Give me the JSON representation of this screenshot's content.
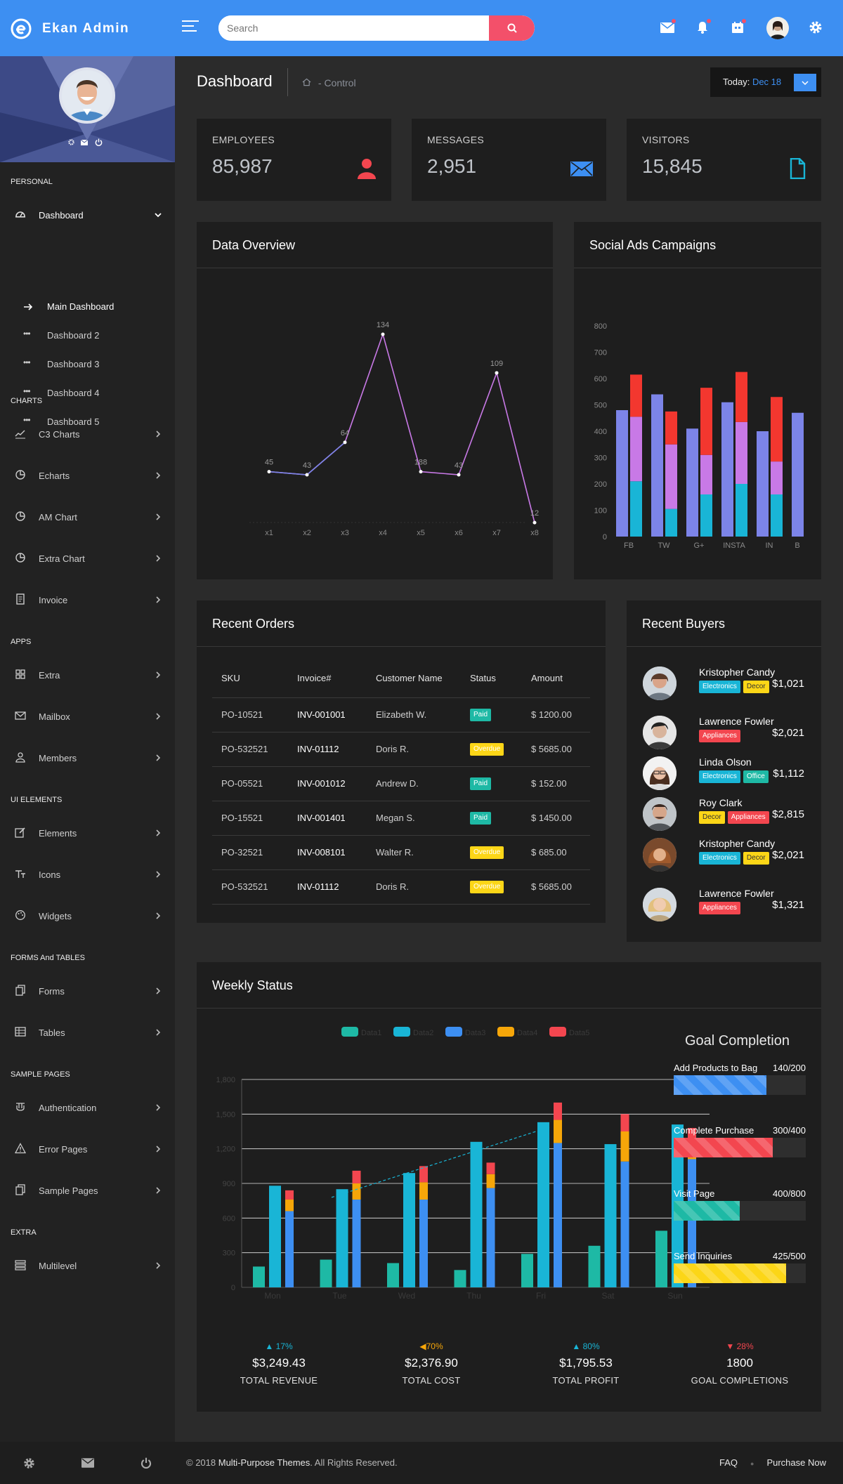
{
  "brand": {
    "name": "Ekan Admin"
  },
  "search": {
    "placeholder": "Search"
  },
  "sidebar": {
    "sections": {
      "personal": "PERSONAL",
      "charts": "CHARTS",
      "apps": "APPS",
      "ui": "UI ELEMENTS",
      "forms": "FORMS And TABLES",
      "sample": "SAMPLE PAGES",
      "extra": "EXTRA"
    },
    "dashboard": "Dashboard",
    "sub": [
      "Main Dashboard",
      "Dashboard 2",
      "Dashboard 3",
      "Dashboard 4",
      "Dashboard 5"
    ],
    "charts": [
      "C3 Charts",
      "Echarts",
      "AM Chart",
      "Extra Chart",
      "Invoice"
    ],
    "apps": [
      "Extra",
      "Mailbox",
      "Members"
    ],
    "ui": [
      "Elements",
      "Icons",
      "Widgets"
    ],
    "forms": [
      "Forms",
      "Tables"
    ],
    "sample": [
      "Authentication",
      "Error Pages",
      "Sample Pages"
    ],
    "extra": [
      "Multilevel"
    ]
  },
  "header": {
    "title": "Dashboard",
    "crumb": "- Control",
    "today_label": "Today:",
    "today_value": "Dec 18"
  },
  "stats": [
    {
      "label": "EMPLOYEES",
      "value": "85,987",
      "color": "#f3464f"
    },
    {
      "label": "MESSAGES",
      "value": "2,951",
      "color": "#3d8ff2"
    },
    {
      "label": "VISITORS",
      "value": "15,845",
      "color": "#19b5d6"
    }
  ],
  "overview": {
    "title": "Data Overview"
  },
  "social": {
    "title": "Social Ads Campaigns"
  },
  "orders": {
    "title": "Recent Orders",
    "columns": [
      "SKU",
      "Invoice#",
      "Customer Name",
      "Status",
      "Amount"
    ],
    "rows": [
      {
        "sku": "PO-10521",
        "inv": "INV-001001",
        "name": "Elizabeth W.",
        "status": "Paid",
        "amount": "$ 1200.00"
      },
      {
        "sku": "PO-532521",
        "inv": "INV-01112",
        "name": "Doris R.",
        "status": "Overdue",
        "amount": "$ 5685.00"
      },
      {
        "sku": "PO-05521",
        "inv": "INV-001012",
        "name": "Andrew D.",
        "status": "Paid",
        "amount": "$ 152.00"
      },
      {
        "sku": "PO-15521",
        "inv": "INV-001401",
        "name": "Megan S.",
        "status": "Paid",
        "amount": "$ 1450.00"
      },
      {
        "sku": "PO-32521",
        "inv": "INV-008101",
        "name": "Walter R.",
        "status": "Overdue",
        "amount": "$ 685.00"
      },
      {
        "sku": "PO-532521",
        "inv": "INV-01112",
        "name": "Doris R.",
        "status": "Overdue",
        "amount": "$ 5685.00"
      }
    ]
  },
  "buyers": {
    "title": "Recent Buyers",
    "list": [
      {
        "name": "Kristopher Candy",
        "amount": "$1,021",
        "tags": [
          "Electronics",
          "Decor"
        ]
      },
      {
        "name": "Lawrence Fowler",
        "amount": "$2,021",
        "tags": [
          "Appliances"
        ]
      },
      {
        "name": "Linda Olson",
        "amount": "$1,112",
        "tags": [
          "Electronics",
          "Office"
        ]
      },
      {
        "name": "Roy Clark",
        "amount": "$2,815",
        "tags": [
          "Decor",
          "Appliances"
        ]
      },
      {
        "name": "Kristopher Candy",
        "amount": "$2,021",
        "tags": [
          "Electronics",
          "Decor"
        ]
      },
      {
        "name": "Lawrence Fowler",
        "amount": "$1,321",
        "tags": [
          "Appliances"
        ]
      }
    ]
  },
  "weekly": {
    "title": "Weekly Status",
    "goal_title": "Goal Completion"
  },
  "goals": [
    {
      "name": "Add Products to Bag",
      "value": "140/200",
      "pct": 0.7,
      "color": "#3d8ff2"
    },
    {
      "name": "Complete Purchase",
      "value": "300/400",
      "pct": 0.75,
      "color": "#f3464f"
    },
    {
      "name": "Visit Page",
      "value": "400/800",
      "pct": 0.5,
      "color": "#1eb9a5"
    },
    {
      "name": "Send Inquiries",
      "value": "425/500",
      "pct": 0.85,
      "color": "#fcd617"
    }
  ],
  "kpis": [
    {
      "pct": "17%",
      "dir": "up",
      "value": "$3,249.43",
      "label": "TOTAL REVENUE",
      "color": "#19b5d6"
    },
    {
      "pct": "70%",
      "dir": "left",
      "value": "$2,376.90",
      "label": "TOTAL COST",
      "color": "#f6a609"
    },
    {
      "pct": "80%",
      "dir": "up",
      "value": "$1,795.53",
      "label": "TOTAL PROFIT",
      "color": "#19b5d6"
    },
    {
      "pct": "28%",
      "dir": "down",
      "value": "1800",
      "label": "GOAL COMPLETIONS",
      "color": "#f3464f"
    }
  ],
  "footer": {
    "copy_prefix": "© 2018",
    "copy_brand": "Multi-Purpose Themes",
    "copy_suffix": ". All Rights Reserved.",
    "faq": "FAQ",
    "purchase": "Purchase Now"
  },
  "chart_data": [
    {
      "type": "line",
      "categories": [
        "x1",
        "x2",
        "x3",
        "x4",
        "x5",
        "x6",
        "x7",
        "x8"
      ],
      "values": [
        45,
        43,
        64,
        134,
        188,
        43,
        109,
        12
      ],
      "color": "#c879e6"
    },
    {
      "type": "bar",
      "categories": [
        "FB",
        "TW",
        "G+",
        "INSTA",
        "IN",
        "B"
      ],
      "ylim": [
        0,
        800
      ],
      "yticks": [
        0,
        100,
        200,
        300,
        400,
        500,
        600,
        700,
        800
      ],
      "groups": [
        {
          "solid": 480,
          "stack": [
            210,
            245,
            160
          ]
        },
        {
          "solid": 540,
          "stack": [
            105,
            245,
            125
          ]
        },
        {
          "solid": 410,
          "stack": [
            160,
            150,
            255
          ]
        },
        {
          "solid": 510,
          "stack": [
            200,
            235,
            190
          ]
        },
        {
          "solid": 400,
          "stack": [
            160,
            125,
            245
          ]
        },
        {
          "solid": 470,
          "stack": []
        }
      ],
      "colors": [
        "#7c84e8",
        "#19b5d6",
        "#c879e6",
        "#f3372f"
      ]
    },
    {
      "type": "bar",
      "categories": [
        "Mon",
        "Tue",
        "Wed",
        "Thu",
        "Fri",
        "Sat",
        "Sun"
      ],
      "ylim": [
        0,
        1800
      ],
      "yticks": [
        0,
        300,
        600,
        900,
        1200,
        1500,
        1800
      ],
      "series": [
        {
          "name": "Data1",
          "values": [
            180,
            240,
            210,
            150,
            290,
            360,
            490
          ]
        },
        {
          "name": "Data2",
          "values": [
            880,
            850,
            990,
            1260,
            1430,
            1240,
            1410
          ]
        },
        {
          "name": "Data3",
          "values": [
            660,
            760,
            760,
            860,
            1250,
            1090,
            1110
          ]
        },
        {
          "name": "Data4",
          "values": [
            100,
            140,
            150,
            120,
            200,
            260,
            150
          ]
        },
        {
          "name": "Data5",
          "values": [
            80,
            110,
            140,
            100,
            150,
            150,
            120
          ]
        }
      ],
      "colors": [
        "#1eb9a5",
        "#19b5d6",
        "#3d8ff2",
        "#f6a609",
        "#f3464f"
      ]
    }
  ]
}
